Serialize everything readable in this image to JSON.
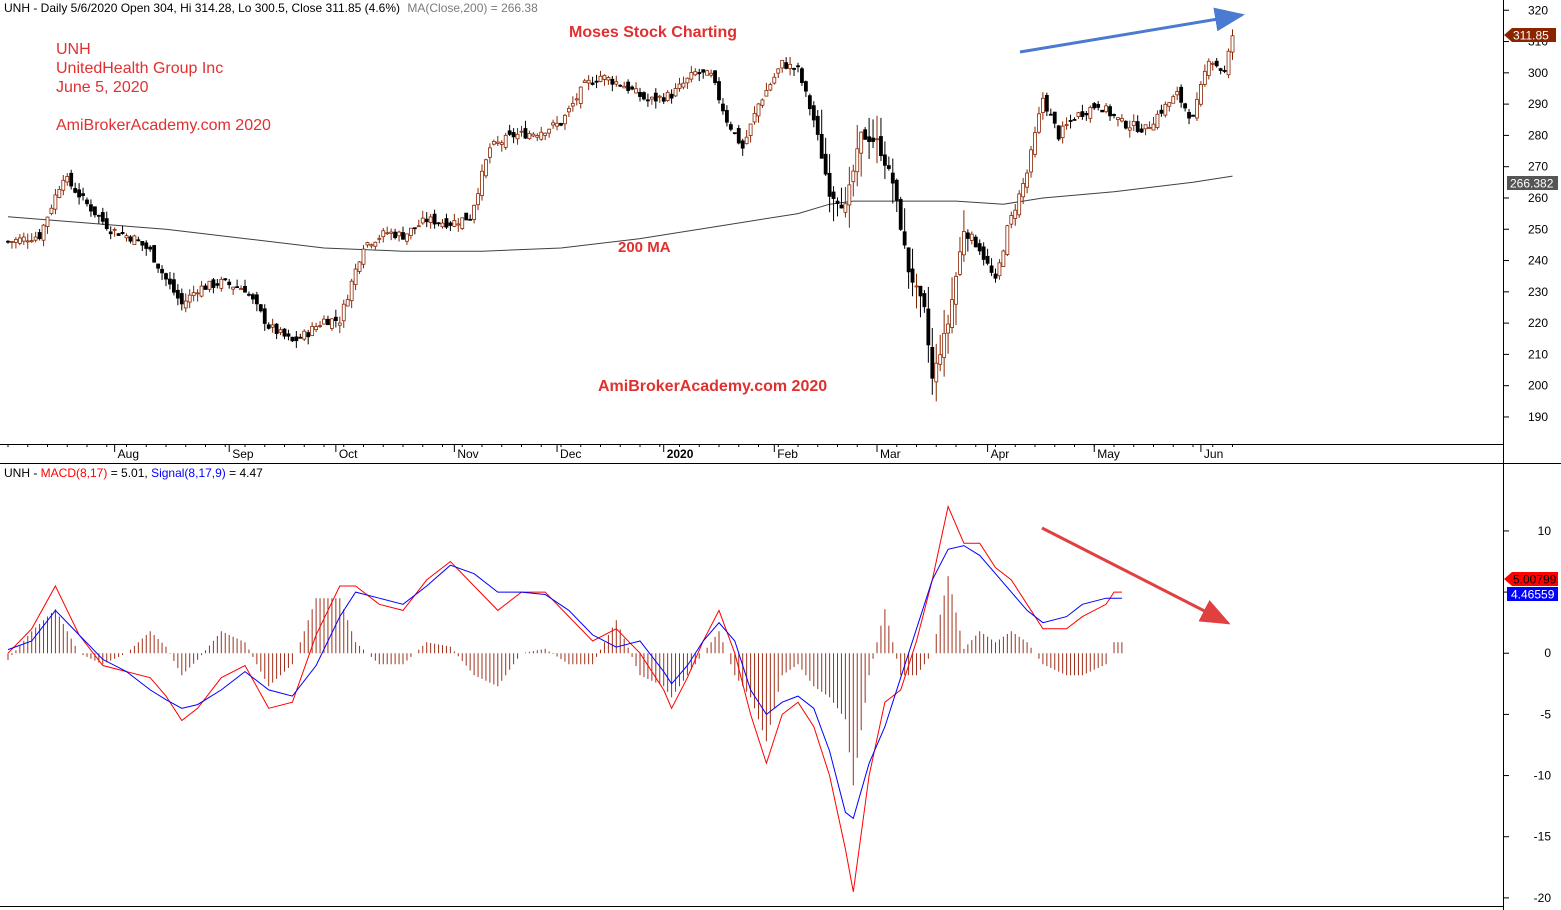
{
  "price_panel": {
    "header": "UNH - Daily 5/6/2020 Open 304, Hi 314.28, Lo 300.5, Close 311.85 (4.6%)",
    "header_ma": "MA(Close,200) = 266.38",
    "info_lines": [
      "UNH",
      "UnitedHealth Group Inc",
      "June 5, 2020"
    ],
    "site_label": "AmiBrokerAcademy.com  2020",
    "center_title": "Moses Stock Charting",
    "ma_label": "200 MA",
    "watermark": "AmiBrokerAcademy.com  2020",
    "close_tag": "311.85",
    "ma_tag": "266.382"
  },
  "macd_panel": {
    "header_symbol": "UNH - ",
    "header_macd": "MACD(8,17)",
    "header_macd_value": " = 5.01, ",
    "header_signal": "Signal(8,17,9)",
    "header_signal_value": " = 4.47",
    "macd_tag": "5.00799",
    "signal_tag": "4.46559"
  },
  "colors": {
    "text_red": "#e03030",
    "macd": "#ff0000",
    "signal": "#0000ff",
    "histogram": "#a0301a",
    "ma": "#404040",
    "up_candle": "#8b2500",
    "down_candle": "#000000",
    "blue_trendline": "#4a7bd0",
    "red_trendline": "#e04040",
    "axis_tag_close": "#8b2500",
    "axis_tag_ma": "#555555"
  },
  "chart_data": [
    {
      "type": "candlestick",
      "title": "UNH - Daily",
      "x_tick_labels": [
        "Aug",
        "Sep",
        "Oct",
        "Nov",
        "Dec",
        "2020",
        "Feb",
        "Mar",
        "Apr",
        "May",
        "Jun"
      ],
      "y_ticks": [
        190,
        200,
        210,
        220,
        230,
        240,
        250,
        260,
        270,
        280,
        290,
        300,
        310,
        320
      ],
      "ylim": [
        182,
        322
      ],
      "grid": false,
      "close_path": [
        [
          0,
          246
        ],
        [
          8,
          248
        ],
        [
          14,
          267
        ],
        [
          20,
          258
        ],
        [
          26,
          250
        ],
        [
          32,
          247
        ],
        [
          36,
          243
        ],
        [
          40,
          234
        ],
        [
          44,
          226
        ],
        [
          48,
          231
        ],
        [
          54,
          233
        ],
        [
          60,
          231
        ],
        [
          66,
          219
        ],
        [
          72,
          214
        ],
        [
          76,
          217
        ],
        [
          80,
          221
        ],
        [
          84,
          221
        ],
        [
          90,
          245
        ],
        [
          96,
          249
        ],
        [
          100,
          248
        ],
        [
          106,
          253
        ],
        [
          112,
          252
        ],
        [
          117,
          254
        ],
        [
          122,
          276
        ],
        [
          128,
          280
        ],
        [
          134,
          281
        ],
        [
          140,
          284
        ],
        [
          146,
          296
        ],
        [
          150,
          299
        ],
        [
          156,
          296
        ],
        [
          162,
          291
        ],
        [
          168,
          293
        ],
        [
          174,
          300
        ],
        [
          178,
          299
        ],
        [
          182,
          285
        ],
        [
          186,
          276
        ],
        [
          190,
          290
        ],
        [
          196,
          303
        ],
        [
          200,
          301
        ],
        [
          204,
          285
        ],
        [
          208,
          262
        ],
        [
          212,
          257
        ],
        [
          216,
          280
        ],
        [
          220,
          278
        ],
        [
          224,
          265
        ],
        [
          228,
          237
        ],
        [
          232,
          224
        ],
        [
          234,
          202
        ],
        [
          238,
          220
        ],
        [
          242,
          250
        ],
        [
          246,
          244
        ],
        [
          250,
          233
        ],
        [
          253,
          250
        ],
        [
          258,
          268
        ],
        [
          262,
          292
        ],
        [
          266,
          280
        ],
        [
          270,
          286
        ],
        [
          276,
          290
        ],
        [
          282,
          284
        ],
        [
          288,
          282
        ],
        [
          292,
          288
        ],
        [
          296,
          293
        ],
        [
          300,
          285
        ],
        [
          304,
          305
        ],
        [
          308,
          300
        ],
        [
          310,
          312
        ]
      ],
      "ma200_path": [
        [
          0,
          254
        ],
        [
          20,
          252
        ],
        [
          40,
          250
        ],
        [
          60,
          247
        ],
        [
          80,
          244
        ],
        [
          100,
          243
        ],
        [
          120,
          243
        ],
        [
          140,
          244
        ],
        [
          160,
          247
        ],
        [
          180,
          251
        ],
        [
          200,
          255
        ],
        [
          208,
          258
        ],
        [
          214,
          259
        ],
        [
          224,
          259
        ],
        [
          240,
          259
        ],
        [
          252,
          258
        ],
        [
          262,
          260
        ],
        [
          280,
          262
        ],
        [
          300,
          265
        ],
        [
          310,
          267
        ]
      ],
      "last_close": 311.85,
      "last_ma200": 266.382
    },
    {
      "type": "line",
      "title": "MACD(8,17), Signal(8,17,9)",
      "y_ticks": [
        -20,
        -15,
        -10,
        -5,
        0,
        5,
        10
      ],
      "ylim": [
        -20.5,
        14
      ],
      "series": [
        {
          "name": "MACD(8,17)",
          "values": [
            [
              0,
              0
            ],
            [
              6,
              2
            ],
            [
              12,
              5.5
            ],
            [
              18,
              1.5
            ],
            [
              24,
              -1
            ],
            [
              30,
              -1.5
            ],
            [
              36,
              -2
            ],
            [
              40,
              -3.5
            ],
            [
              44,
              -5.5
            ],
            [
              48,
              -4.5
            ],
            [
              54,
              -2
            ],
            [
              60,
              -1
            ],
            [
              66,
              -4.5
            ],
            [
              72,
              -4
            ],
            [
              78,
              1.5
            ],
            [
              84,
              5.5
            ],
            [
              88,
              5.5
            ],
            [
              94,
              4
            ],
            [
              100,
              3.5
            ],
            [
              106,
              6
            ],
            [
              112,
              7.5
            ],
            [
              118,
              5.5
            ],
            [
              124,
              3.5
            ],
            [
              130,
              5
            ],
            [
              136,
              5
            ],
            [
              142,
              3
            ],
            [
              148,
              1
            ],
            [
              154,
              2
            ],
            [
              160,
              0
            ],
            [
              166,
              -3
            ],
            [
              168,
              -4.5
            ],
            [
              172,
              -2
            ],
            [
              176,
              1
            ],
            [
              180,
              3.5
            ],
            [
              184,
              0
            ],
            [
              188,
              -5
            ],
            [
              192,
              -9
            ],
            [
              196,
              -5
            ],
            [
              200,
              -4
            ],
            [
              204,
              -6
            ],
            [
              208,
              -10
            ],
            [
              212,
              -16
            ],
            [
              214,
              -19.5
            ],
            [
              218,
              -10
            ],
            [
              222,
              -4
            ],
            [
              226,
              -3
            ],
            [
              230,
              1
            ],
            [
              234,
              6
            ],
            [
              238,
              12
            ],
            [
              242,
              9
            ],
            [
              246,
              9
            ],
            [
              250,
              7
            ],
            [
              254,
              6
            ],
            [
              258,
              4
            ],
            [
              262,
              2
            ],
            [
              268,
              2
            ],
            [
              272,
              3
            ],
            [
              278,
              4
            ],
            [
              280,
              5
            ],
            [
              282,
              5
            ]
          ]
        },
        {
          "name": "Signal(8,17,9)",
          "values": [
            [
              0,
              0.3
            ],
            [
              6,
              1
            ],
            [
              12,
              3.5
            ],
            [
              18,
              1.5
            ],
            [
              24,
              -0.5
            ],
            [
              30,
              -1.5
            ],
            [
              36,
              -3
            ],
            [
              40,
              -3.8
            ],
            [
              44,
              -4.5
            ],
            [
              48,
              -4.2
            ],
            [
              54,
              -3
            ],
            [
              60,
              -1.5
            ],
            [
              66,
              -3
            ],
            [
              72,
              -3.5
            ],
            [
              78,
              -1
            ],
            [
              84,
              3
            ],
            [
              88,
              5
            ],
            [
              94,
              4.5
            ],
            [
              100,
              4
            ],
            [
              106,
              5.5
            ],
            [
              112,
              7.2
            ],
            [
              118,
              6.5
            ],
            [
              124,
              5
            ],
            [
              130,
              5
            ],
            [
              136,
              4.8
            ],
            [
              142,
              3.5
            ],
            [
              148,
              1.5
            ],
            [
              154,
              0.5
            ],
            [
              160,
              1
            ],
            [
              166,
              -1.5
            ],
            [
              168,
              -2.5
            ],
            [
              172,
              -1
            ],
            [
              176,
              1
            ],
            [
              180,
              2.5
            ],
            [
              184,
              1
            ],
            [
              188,
              -3
            ],
            [
              192,
              -5
            ],
            [
              196,
              -4
            ],
            [
              200,
              -3.5
            ],
            [
              204,
              -4.5
            ],
            [
              208,
              -8
            ],
            [
              212,
              -13
            ],
            [
              214,
              -13.5
            ],
            [
              218,
              -9
            ],
            [
              222,
              -6
            ],
            [
              226,
              -2
            ],
            [
              230,
              2
            ],
            [
              234,
              6
            ],
            [
              238,
              8.5
            ],
            [
              242,
              8.8
            ],
            [
              246,
              8
            ],
            [
              250,
              6.5
            ],
            [
              254,
              5
            ],
            [
              258,
              3.5
            ],
            [
              262,
              2.5
            ],
            [
              268,
              3
            ],
            [
              272,
              4
            ],
            [
              278,
              4.5
            ],
            [
              282,
              4.5
            ]
          ]
        }
      ],
      "histogram_note": "MACD minus Signal",
      "last_macd": 5.00799,
      "last_signal": 4.46559
    }
  ]
}
